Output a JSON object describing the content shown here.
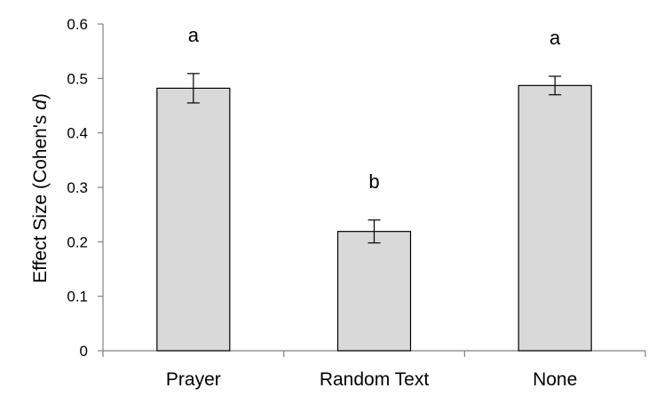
{
  "chart_data": {
    "type": "bar",
    "categories": [
      "Prayer",
      "Random Text",
      "None"
    ],
    "values": [
      0.482,
      0.219,
      0.487
    ],
    "errors": [
      0.027,
      0.021,
      0.017
    ],
    "significance_labels": [
      "a",
      "b",
      "a"
    ],
    "title": "",
    "xlabel": "",
    "ylabel_prefix": "Effect Size (Cohen's ",
    "ylabel_italic": "d",
    "ylabel_suffix": ")",
    "ylim": [
      0,
      0.6
    ],
    "yticks": [
      "0",
      "0.1",
      "0.2",
      "0.3",
      "0.4",
      "0.5",
      "0.6"
    ],
    "grid": false,
    "legend": "none",
    "bar_color": "#d9d9d9",
    "bar_edge_color": "#000000"
  }
}
